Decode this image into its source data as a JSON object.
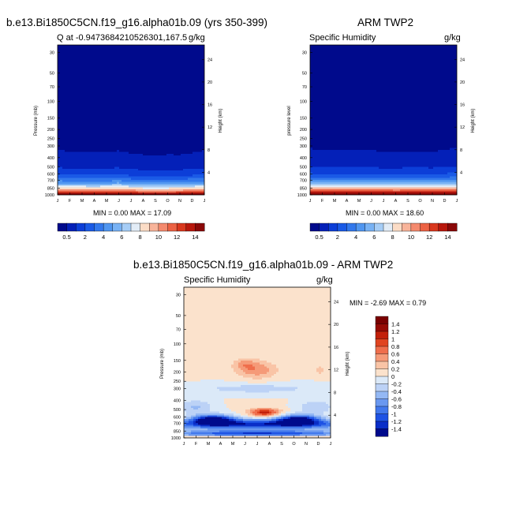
{
  "chart_data": [
    {
      "type": "heatmap",
      "title": "b.e13.Bi1850C5CN.f19_g16.alpha01b.09 (yrs 350-399)",
      "subtitle_left": "Q at -0.9473684210526301,167.5",
      "subtitle_right": "g/kg",
      "ylabel": "Pressure (mb)",
      "ylabel_right": "Height (km)",
      "months": [
        "J",
        "F",
        "M",
        "A",
        "M",
        "J",
        "J",
        "A",
        "S",
        "O",
        "N",
        "D",
        "J"
      ],
      "pressure_ticks": [
        "30",
        "50",
        "70",
        "100",
        "150",
        "200",
        "250",
        "300",
        "400",
        "500",
        "600",
        "700",
        "850",
        "1000"
      ],
      "height_ticks": [
        "4",
        "8",
        "12",
        "16",
        "20",
        "24"
      ],
      "stats": {
        "min_label": "MIN =",
        "min": "0.00",
        "max_label": "MAX =",
        "max": "17.09"
      },
      "levels": [
        0.5,
        1,
        2,
        3,
        4,
        5,
        6,
        7,
        8,
        9,
        10,
        11,
        12,
        13,
        14
      ],
      "colorbar_labels": [
        "0.5",
        "2",
        "4",
        "6",
        "8",
        "10",
        "12",
        "14"
      ],
      "profile_top": [
        330,
        345,
        352,
        348,
        342,
        338,
        360,
        372,
        380,
        370,
        372,
        355,
        335
      ],
      "boundary_layer_max": [
        16.2,
        16.5,
        16.4,
        16.0,
        16.3,
        17.0,
        16.2,
        15.6,
        15.4,
        15.6,
        16.0,
        16.3,
        16.2
      ]
    },
    {
      "type": "heatmap",
      "title": "ARM TWP2",
      "subtitle_left": "Specific Humidity",
      "subtitle_right": "g/kg",
      "ylabel": "pressure level",
      "ylabel_right": "Height (km)",
      "months": [
        "J",
        "F",
        "M",
        "A",
        "M",
        "J",
        "J",
        "A",
        "S",
        "O",
        "N",
        "D",
        "J"
      ],
      "pressure_ticks": [
        "30",
        "50",
        "70",
        "100",
        "150",
        "200",
        "250",
        "300",
        "400",
        "500",
        "600",
        "700",
        "850",
        "1000"
      ],
      "height_ticks": [
        "4",
        "8",
        "12",
        "16",
        "20",
        "24"
      ],
      "stats": {
        "min_label": "MIN =",
        "min": "0.00",
        "max_label": "MAX =",
        "max": "18.60"
      },
      "levels": [
        0.5,
        1,
        2,
        3,
        4,
        5,
        6,
        7,
        8,
        9,
        10,
        11,
        12,
        13,
        14
      ],
      "colorbar_labels": [
        "0.5",
        "2",
        "4",
        "6",
        "8",
        "10",
        "12",
        "14"
      ],
      "profile_top": [
        322,
        330,
        334,
        330,
        326,
        332,
        350,
        345,
        340,
        342,
        346,
        328,
        318
      ],
      "boundary_layer_max": [
        17.6,
        17.8,
        17.5,
        17.2,
        17.4,
        17.8,
        17.6,
        17.3,
        17.4,
        17.6,
        17.8,
        17.9,
        17.6
      ]
    },
    {
      "type": "heatmap",
      "title": "b.e13.Bi1850C5CN.f19_g16.alpha01b.09 - ARM TWP2",
      "subtitle_left": "Specific Humidity",
      "subtitle_right": "g/kg",
      "ylabel": "Pressure (mb)",
      "ylabel_right": "Height (km)",
      "months": [
        "J",
        "F",
        "M",
        "A",
        "M",
        "J",
        "J",
        "A",
        "S",
        "O",
        "N",
        "D",
        "J"
      ],
      "pressure_ticks": [
        "30",
        "50",
        "70",
        "100",
        "150",
        "200",
        "250",
        "300",
        "400",
        "500",
        "600",
        "700",
        "850",
        "1000"
      ],
      "height_ticks": [
        "4",
        "8",
        "12",
        "16",
        "20",
        "24"
      ],
      "stats": {
        "min_label": "MIN =",
        "min": "-2.69",
        "max_label": "MAX =",
        "max": "0.79"
      },
      "levels": [
        -1.4,
        -1.2,
        -1,
        -0.8,
        -0.6,
        -0.4,
        -0.2,
        0,
        0.2,
        0.4,
        0.6,
        0.8,
        1,
        1.2,
        1.4
      ],
      "colorbar_labels": [
        "1.4",
        "1.2",
        "1",
        "0.8",
        "0.6",
        "0.4",
        "0.2",
        "0",
        "-0.2",
        "-0.4",
        "-0.6",
        "-0.8",
        "-1",
        "-1.2",
        "-1.4"
      ]
    }
  ],
  "colors": {
    "sequential": [
      "#000a8c",
      "#0420b8",
      "#0c3ed8",
      "#1a5ae6",
      "#3278ec",
      "#5096f0",
      "#78b2f4",
      "#a6cdf6",
      "#e2ecf6",
      "#fbdcc6",
      "#f8b49a",
      "#f48a6e",
      "#ec6244",
      "#d9381e",
      "#b8170c",
      "#8a0808"
    ],
    "diverging": [
      "#000a8c",
      "#0a2ec8",
      "#1e52e4",
      "#4278ec",
      "#6a98f0",
      "#94b8f4",
      "#bcd2f6",
      "#dbe9f8",
      "#fbe2cc",
      "#f9c4a6",
      "#f59a78",
      "#ef6e4c",
      "#e04420",
      "#c2200a",
      "#960a04",
      "#7a0000"
    ]
  }
}
